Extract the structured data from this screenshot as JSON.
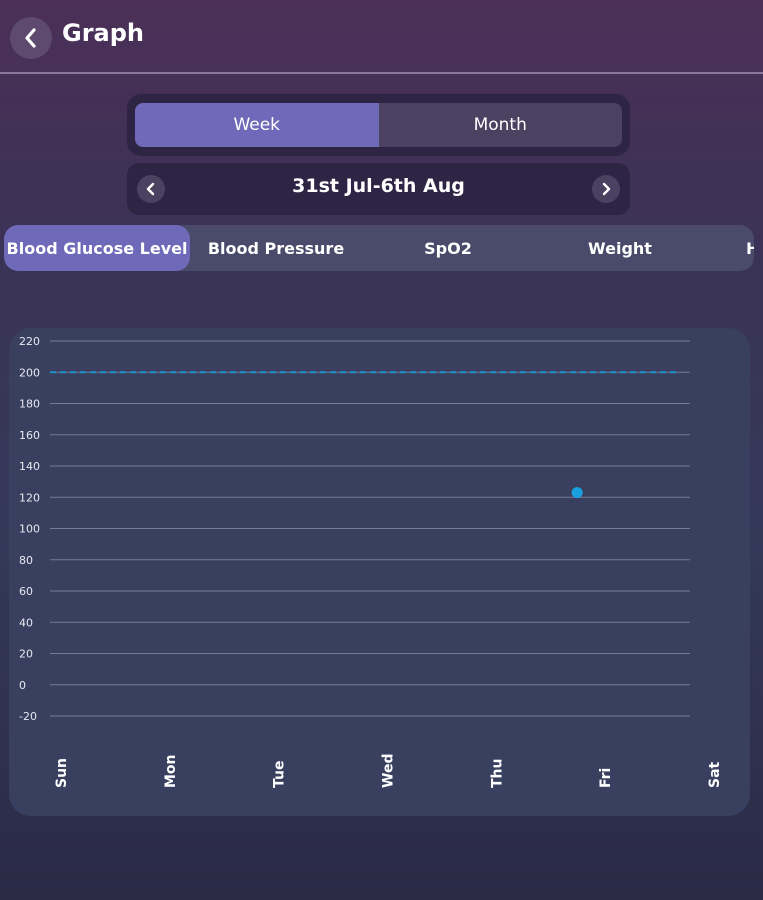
{
  "header": {
    "title": "Graph",
    "back_icon": "chevron-left-icon"
  },
  "period_toggle": {
    "options": [
      "Week",
      "Month"
    ],
    "selected": "Week"
  },
  "date_nav": {
    "label": "31st Jul-6th Aug",
    "prev_icon": "chevron-left-icon",
    "next_icon": "chevron-right-icon"
  },
  "metric_tabs": {
    "items": [
      "Blood Glucose Level",
      "Blood Pressure",
      "SpO2",
      "Weight",
      "H"
    ],
    "selected": "Blood Glucose Level"
  },
  "colors": {
    "accent": "#6e69b8",
    "point": "#1aa0e0",
    "threshold": "#1e90d0",
    "grid": "#8a8fa8"
  },
  "chart_data": {
    "type": "scatter",
    "categories": [
      "Sun",
      "Mon",
      "Tue",
      "Wed",
      "Thu",
      "Fri",
      "Sat"
    ],
    "y_ticks": [
      220,
      200,
      180,
      160,
      140,
      120,
      100,
      80,
      60,
      40,
      20,
      0,
      -20
    ],
    "ylim": [
      -20,
      220
    ],
    "threshold": 200,
    "points": [
      {
        "x": "Fri",
        "y": 123
      }
    ],
    "grid": true,
    "title": "",
    "xlabel": "",
    "ylabel": ""
  }
}
